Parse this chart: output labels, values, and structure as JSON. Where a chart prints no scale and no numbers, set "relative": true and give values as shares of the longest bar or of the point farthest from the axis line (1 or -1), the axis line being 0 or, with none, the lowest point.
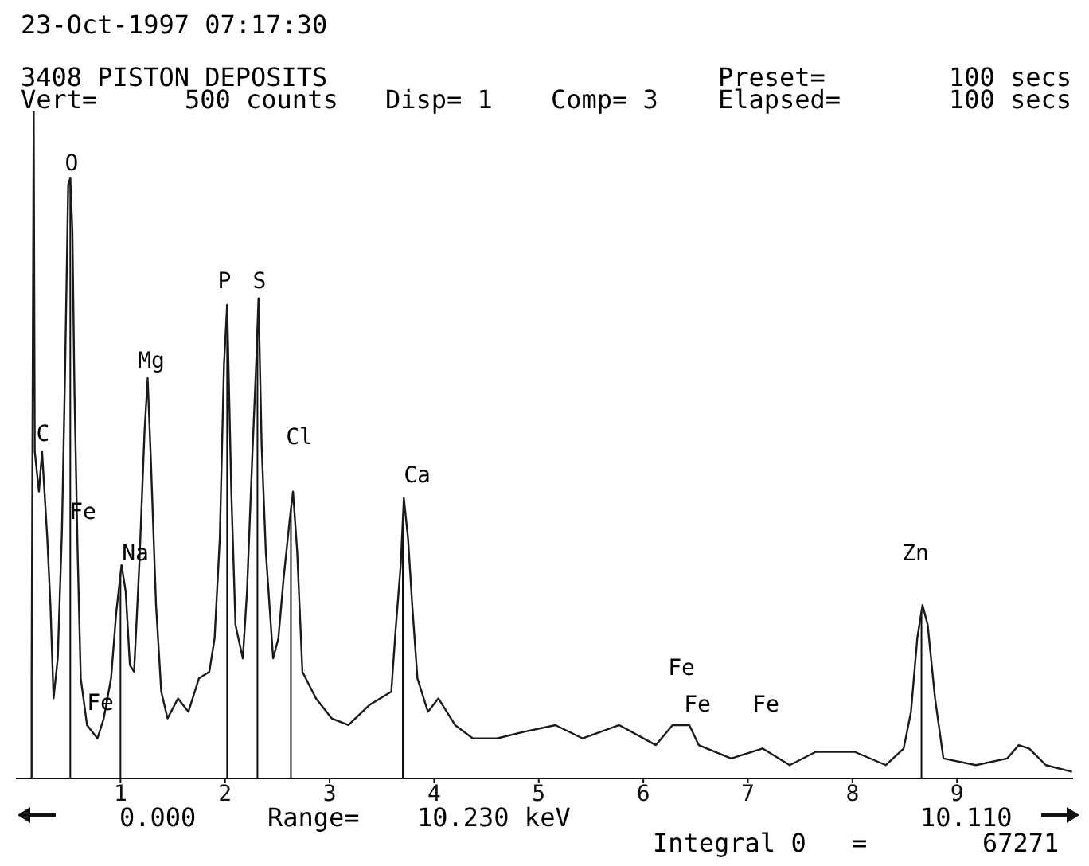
{
  "chart_data": {
    "type": "line",
    "title": "3408 PISTON DEPOSITS",
    "relative": true,
    "tick_labels": "x",
    "color": "#1a1a1a",
    "x": [
      0.15,
      0.15,
      0.17,
      0.18,
      0.22,
      0.25,
      0.3,
      0.33,
      0.36,
      0.4,
      0.44,
      0.47,
      0.5,
      0.52,
      0.54,
      0.56,
      0.59,
      0.62,
      0.68,
      0.78,
      0.84,
      0.91,
      0.96,
      1.01,
      1.05,
      1.09,
      1.13,
      1.18,
      1.23,
      1.26,
      1.29,
      1.34,
      1.39,
      1.45,
      1.55,
      1.65,
      1.75,
      1.85,
      1.9,
      1.95,
      1.99,
      2.02,
      2.06,
      2.1,
      2.17,
      2.21,
      2.26,
      2.3,
      2.32,
      2.35,
      2.39,
      2.46,
      2.51,
      2.56,
      2.62,
      2.65,
      2.69,
      2.74,
      2.87,
      3.02,
      3.18,
      3.38,
      3.59,
      3.63,
      3.68,
      3.71,
      3.75,
      3.79,
      3.84,
      3.94,
      4.04,
      4.2,
      4.37,
      4.6,
      4.86,
      5.16,
      5.42,
      5.77,
      6.12,
      6.28,
      6.44,
      6.53,
      6.84,
      7.14,
      7.4,
      7.65,
      8.02,
      8.32,
      8.49,
      8.56,
      8.62,
      8.67,
      8.72,
      8.79,
      8.87,
      9.18,
      9.48,
      9.59,
      9.69,
      9.85,
      10.1
    ],
    "values": [
      0,
      0.15,
      1,
      0.49,
      0.43,
      0.49,
      0.36,
      0.26,
      0.12,
      0.18,
      0.37,
      0.61,
      0.89,
      0.9,
      0.82,
      0.58,
      0.34,
      0.15,
      0.08,
      0.06,
      0.09,
      0.15,
      0.25,
      0.32,
      0.28,
      0.17,
      0.16,
      0.32,
      0.52,
      0.6,
      0.48,
      0.26,
      0.13,
      0.09,
      0.12,
      0.1,
      0.15,
      0.16,
      0.21,
      0.36,
      0.62,
      0.71,
      0.43,
      0.23,
      0.18,
      0.28,
      0.48,
      0.63,
      0.72,
      0.5,
      0.34,
      0.18,
      0.21,
      0.3,
      0.39,
      0.43,
      0.34,
      0.16,
      0.12,
      0.09,
      0.08,
      0.11,
      0.13,
      0.22,
      0.32,
      0.42,
      0.36,
      0.26,
      0.15,
      0.1,
      0.12,
      0.08,
      0.06,
      0.06,
      0.07,
      0.08,
      0.06,
      0.08,
      0.05,
      0.08,
      0.08,
      0.05,
      0.03,
      0.045,
      0.02,
      0.04,
      0.04,
      0.02,
      0.045,
      0.1,
      0.21,
      0.26,
      0.23,
      0.12,
      0.03,
      0.02,
      0.03,
      0.05,
      0.045,
      0.02,
      0.01
    ],
    "xlim": [
      0,
      10.11
    ],
    "xticks": [
      1,
      2,
      3,
      4,
      5,
      6,
      7,
      8,
      9
    ],
    "ref_lines": [
      {
        "axis": "x",
        "value": 0.52
      },
      {
        "axis": "x",
        "value": 1.0
      },
      {
        "axis": "x",
        "value": 2.02
      },
      {
        "axis": "x",
        "value": 2.31
      },
      {
        "axis": "x",
        "value": 2.63
      },
      {
        "axis": "x",
        "value": 3.7
      },
      {
        "axis": "x",
        "value": 8.66
      }
    ],
    "annotations": [
      "23-Oct-1997 07:17:30",
      "Vert=",
      "500 counts",
      "Disp= 1",
      "Comp= 3",
      "Preset=",
      "100 secs",
      "Elapsed=",
      "100 secs",
      "0.000",
      "Range=",
      "10.230 keV",
      "10.110",
      "Integral 0",
      "=",
      "67271",
      "C",
      "O",
      "Fe",
      "Fe",
      "Na",
      "Mg",
      "P",
      "S",
      "Cl",
      "Ca",
      "Fe",
      "Fe",
      "Fe",
      "Zn"
    ]
  }
}
